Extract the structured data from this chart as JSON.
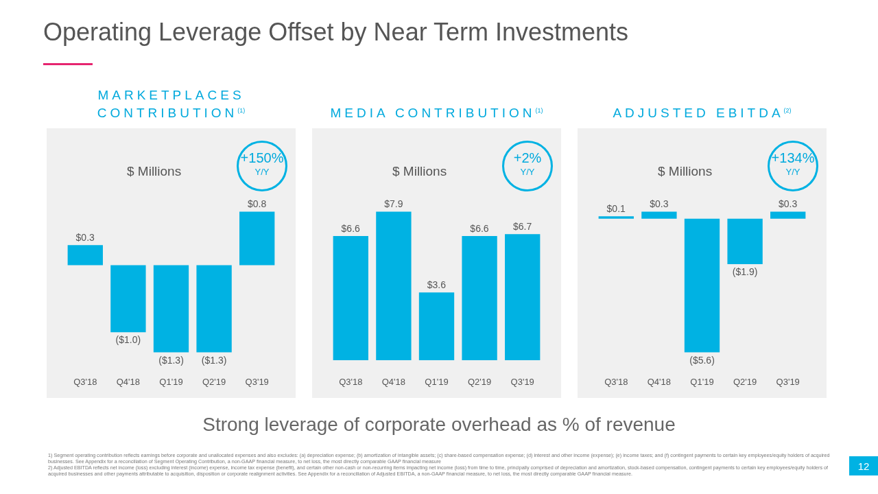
{
  "chart_data": [
    {
      "type": "other",
      "title": "Operating Leverage Offset by Near Term Investments",
      "annotations": [
        "Strong leverage of corporate overhead as % of revenue",
        "1) Segment operating contribution reflects earnings before corporate and unallocated expenses and also excludes: (a) depreciation expense; (b) amortization of intangible assets; (c) share-based compensation expense; (d) interest and other income (expense); (e) income taxes; and (f) contingent payments to certain key employees/equity holders of acquired businesses. See Appendix for a reconciliation of Segment Operating Contribution, a non-GAAP financial measure, to net loss, the most directly comparable GAAP financial measure",
        "2) Adjusted EBITDA reflects net income (loss) excluding interest (income) expense, income tax expense (benefit), and certain other non-cash or non-recurring items impacting net income (loss) from time to time, principally comprised of depreciation and amortization, stock-based compensation, contingent payments to certain key employees/equity holders of acquired businesses and other payments attributable to acquisition, disposition or corporate realignment activities. See Appendix for a reconciliation of Adjusted EBITDA, a non-GAAP financial measure, to net loss, the most directly comparable GAAP financial measure.",
        "12"
      ]
    },
    {
      "type": "bar",
      "title": "MARKETPLACES CONTRIBUTION$^{(1)}$",
      "subtitle": "$ Millions",
      "annotations": [
        "+150%",
        "Y/Y"
      ],
      "categories": [
        "Q3'18",
        "Q4'18",
        "Q1'19",
        "Q2'19",
        "Q3'19"
      ],
      "values": [
        0.3,
        -1.0,
        -1.3,
        -1.3,
        0.8
      ],
      "value_labels": [
        "$0.3",
        "($1.0)",
        "($1.3)",
        "($1.3)",
        "$0.8"
      ],
      "color": "#00b2e3"
    },
    {
      "type": "bar",
      "title": "MEDIA CONTRIBUTION$^{(1)}$",
      "subtitle": "$ Millions",
      "annotations": [
        "+2%",
        "Y/Y"
      ],
      "categories": [
        "Q3'18",
        "Q4'18",
        "Q1'19",
        "Q2'19",
        "Q3'19"
      ],
      "values": [
        6.6,
        7.9,
        3.6,
        6.6,
        6.7
      ],
      "value_labels": [
        "$6.6",
        "$7.9",
        "$3.6",
        "$6.6",
        "$6.7"
      ],
      "color": "#00b2e3"
    },
    {
      "type": "bar",
      "title": "ADJUSTED EBITDA$^{(2)}$",
      "subtitle": "$ Millions",
      "annotations": [
        "+134%",
        "Y/Y"
      ],
      "categories": [
        "Q3'18",
        "Q4'18",
        "Q1'19",
        "Q2'19",
        "Q3'19"
      ],
      "values": [
        0.1,
        0.3,
        -5.6,
        -1.9,
        0.3
      ],
      "value_labels": [
        "$0.1",
        "$0.3",
        "($5.6)",
        "($1.9)",
        "$0.3"
      ],
      "color": "#00b2e3"
    }
  ]
}
